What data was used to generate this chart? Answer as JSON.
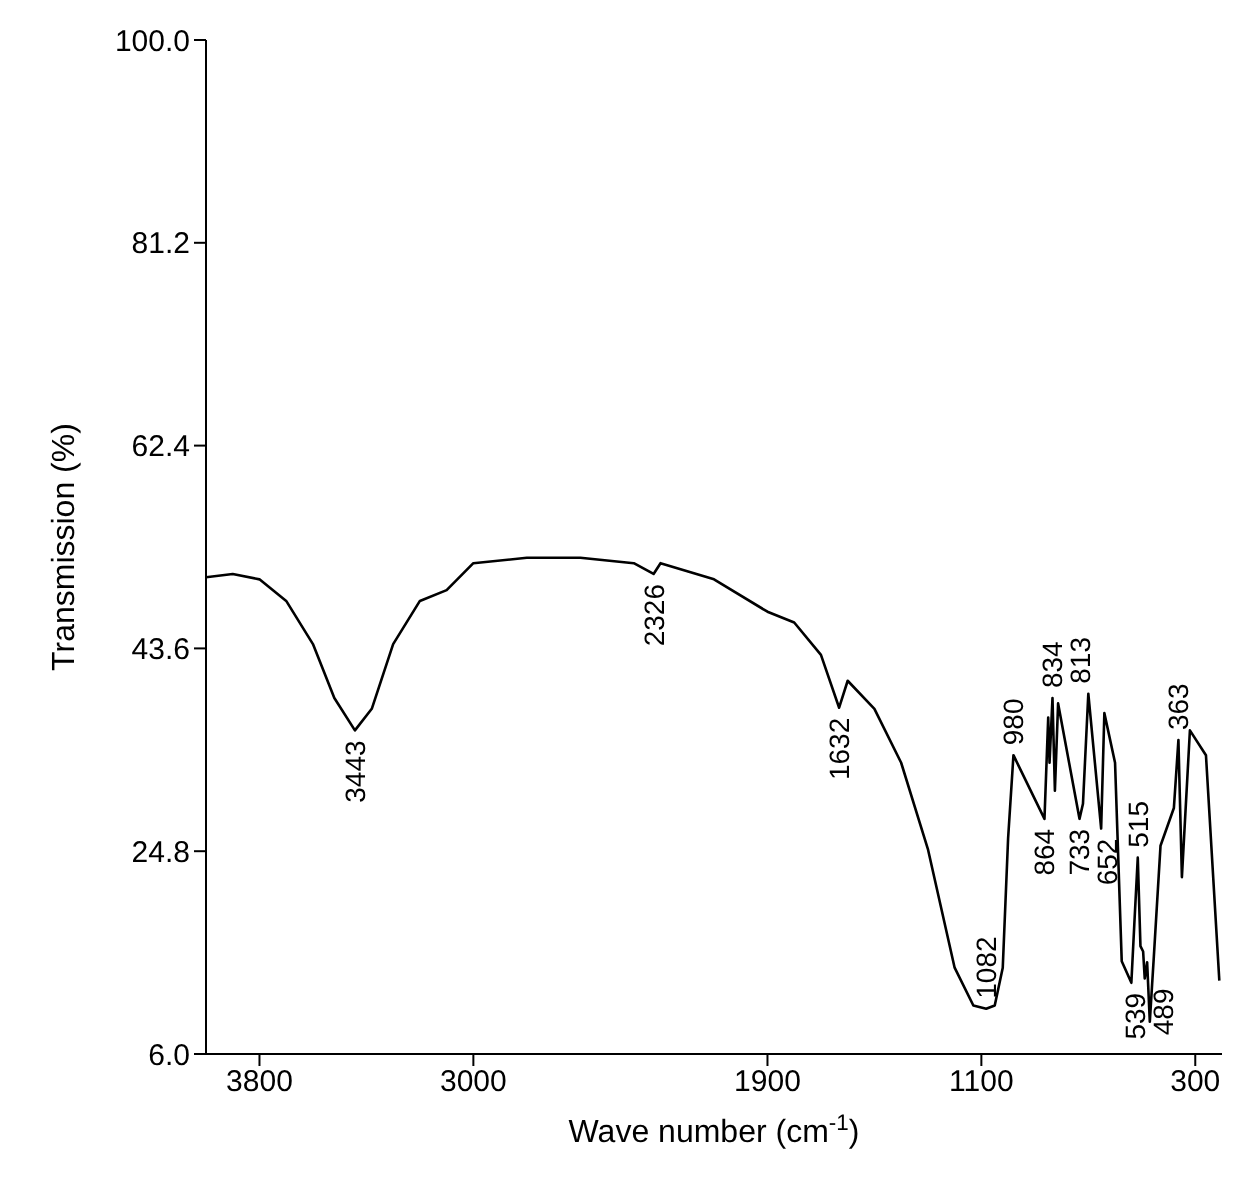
{
  "chart_data": {
    "type": "line",
    "xlabel": "Wave number (cm$^{-1}$)",
    "ylabel": "Transmission (%)",
    "xlim": [
      4000,
      200
    ],
    "xticks": [
      3800,
      3000,
      1900,
      1100,
      300
    ],
    "ylim": [
      6,
      100
    ],
    "yticks": [
      {
        "value": 6,
        "label": "6.0"
      },
      24.8,
      43.6,
      62.4,
      81.2,
      {
        "value": 100,
        "label": "100.0"
      }
    ],
    "marker": "none",
    "line_style": "solid",
    "x": [
      4000,
      3900,
      3800,
      3700,
      3600,
      3520,
      3443,
      3380,
      3300,
      3200,
      3100,
      3000,
      2800,
      2600,
      2400,
      2326,
      2300,
      2100,
      1900,
      1800,
      1700,
      1632,
      1600,
      1500,
      1400,
      1300,
      1200,
      1130,
      1082,
      1050,
      1020,
      1000,
      980,
      864,
      850,
      845,
      834,
      825,
      813,
      733,
      720,
      700,
      652,
      640,
      600,
      575,
      539,
      528,
      515,
      505,
      495,
      489,
      480,
      470,
      455,
      430,
      380,
      363,
      350,
      320,
      260,
      210
    ],
    "series": [
      {
        "color": "#000000",
        "values": [
          50.2,
          50.5,
          50,
          48,
          44,
          39,
          36.0,
          38,
          44,
          48,
          49,
          51.5,
          52,
          52,
          51.5,
          50.5,
          51.5,
          50,
          47,
          46,
          43,
          38.1,
          40.6,
          38,
          33,
          25,
          14,
          10.5,
          10.2,
          10.5,
          14,
          26,
          33.7,
          27.8,
          37.2,
          33,
          39,
          30.4,
          38.5,
          27.8,
          29.2,
          39.4,
          26.9,
          37.6,
          33,
          14.6,
          12.6,
          18,
          24.2,
          16,
          15.5,
          13,
          14.5,
          9,
          15,
          25.3,
          28.8,
          35.1,
          22.4,
          36,
          33.7,
          12.8
        ]
      }
    ],
    "annotations": [
      {
        "text": "3443",
        "x": 3443,
        "y": 36.0
      },
      {
        "text": "2326",
        "x": 2326,
        "y": 50.5
      },
      {
        "text": "1632",
        "x": 1632,
        "y": 38.1
      },
      {
        "text": "1082",
        "x": 1082,
        "y": 10.2
      },
      {
        "text": "980",
        "x": 980,
        "y": 33.7
      },
      {
        "text": "864",
        "x": 864,
        "y": 27.8
      },
      {
        "text": "834",
        "x": 834,
        "y": 39
      },
      {
        "text": "813",
        "x": 813,
        "y": 38.5
      },
      {
        "text": "733",
        "x": 733,
        "y": 27.8
      },
      {
        "text": "652",
        "x": 652,
        "y": 26.9
      },
      {
        "text": "539",
        "x": 539,
        "y": 12.6
      },
      {
        "text": "515",
        "x": 515,
        "y": 24.2
      },
      {
        "text": "489",
        "x": 489,
        "y": 13
      },
      {
        "text": "363",
        "x": 363,
        "y": 35.1
      }
    ]
  }
}
